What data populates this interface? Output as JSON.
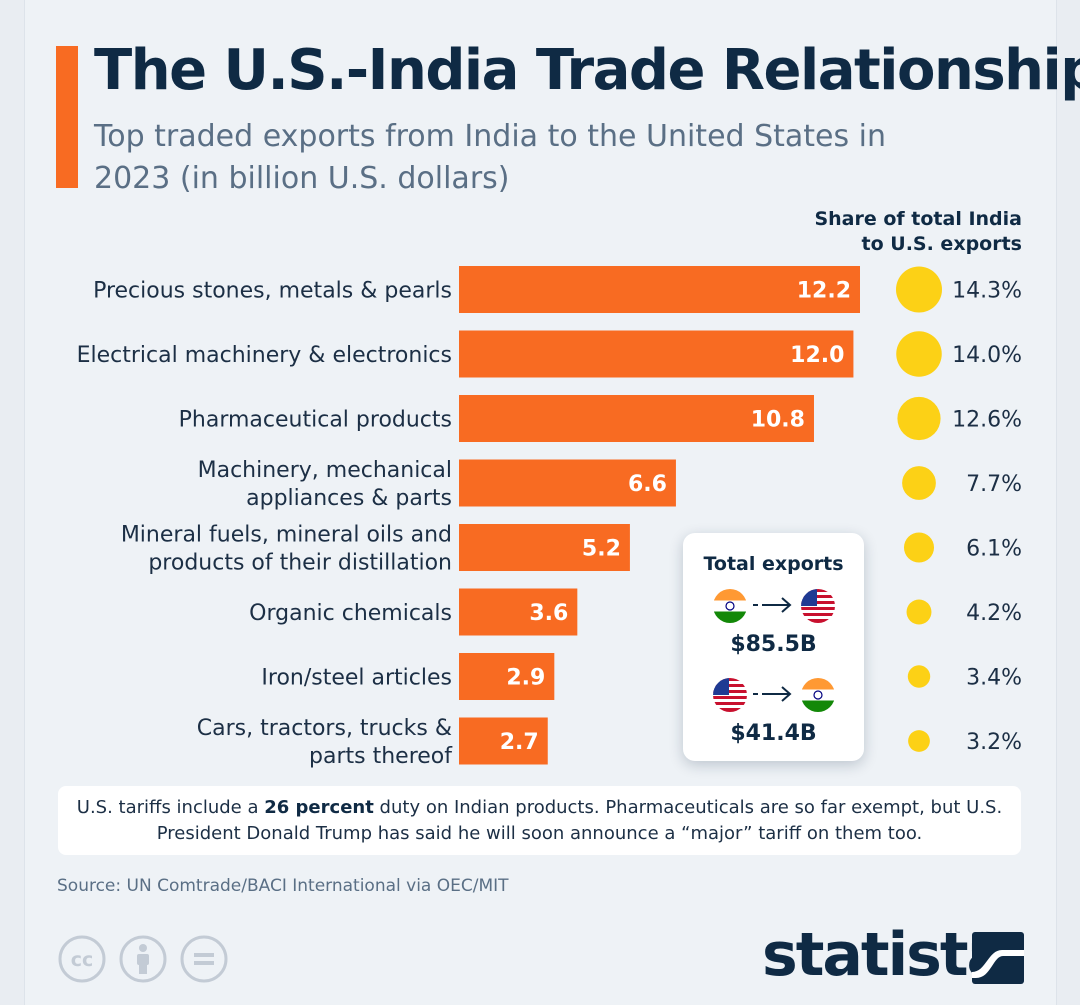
{
  "title": "The U.S.-India Trade Relationship",
  "subtitle": "Top traded exports from India to the United States in 2023 (in billion U.S. dollars)",
  "share_header": {
    "line1": "Share of total India",
    "line2": "to U.S. exports"
  },
  "chart_data": {
    "type": "bar",
    "orientation": "horizontal",
    "title": "Top traded exports from India to the United States in 2023 (in billion U.S. dollars)",
    "xlabel": "",
    "ylabel": "",
    "xlim": [
      0,
      12.2
    ],
    "grid": false,
    "legend": "none",
    "categories": [
      [
        "Precious stones, metals & pearls"
      ],
      [
        "Electrical machinery & electronics"
      ],
      [
        "Pharmaceutical products"
      ],
      [
        "Machinery, mechanical",
        "appliances & parts"
      ],
      [
        "Mineral fuels, mineral oils and",
        "products of their distillation"
      ],
      [
        "Organic chemicals"
      ],
      [
        "Iron/steel articles"
      ],
      [
        "Cars, tractors, trucks &",
        "parts thereof"
      ]
    ],
    "values": [
      12.2,
      12.0,
      10.8,
      6.6,
      5.2,
      3.6,
      2.9,
      2.7
    ],
    "value_labels": [
      "12.2",
      "12.0",
      "10.8",
      "6.6",
      "5.2",
      "3.6",
      "2.9",
      "2.7"
    ],
    "share_percent": [
      14.3,
      14.0,
      12.6,
      7.7,
      6.1,
      4.2,
      3.4,
      3.2
    ],
    "share_labels": [
      "14.3%",
      "14.0%",
      "12.6%",
      "7.7%",
      "6.1%",
      "4.2%",
      "3.4%",
      "3.2%"
    ],
    "share_series_name": "Share of total India to U.S. exports",
    "bar_color": "#f86b22",
    "share_color": "#fcd116"
  },
  "total_exports": {
    "title": "Total exports",
    "india_to_us": "$85.5B",
    "us_to_india": "$41.4B"
  },
  "note": {
    "before": "U.S. tariffs include a ",
    "highlight": "26 percent",
    "after": " duty on Indian products. Pharmaceuticals are so far exempt, but U.S. President Donald Trump has said he will soon announce a “major” tariff on them too."
  },
  "source": "Source: UN Comtrade/BACI International via OEC/MIT",
  "brand": "statista",
  "colors": {
    "accent": "#f86b22",
    "navy": "#0f2a44",
    "yellow": "#fcd116"
  }
}
